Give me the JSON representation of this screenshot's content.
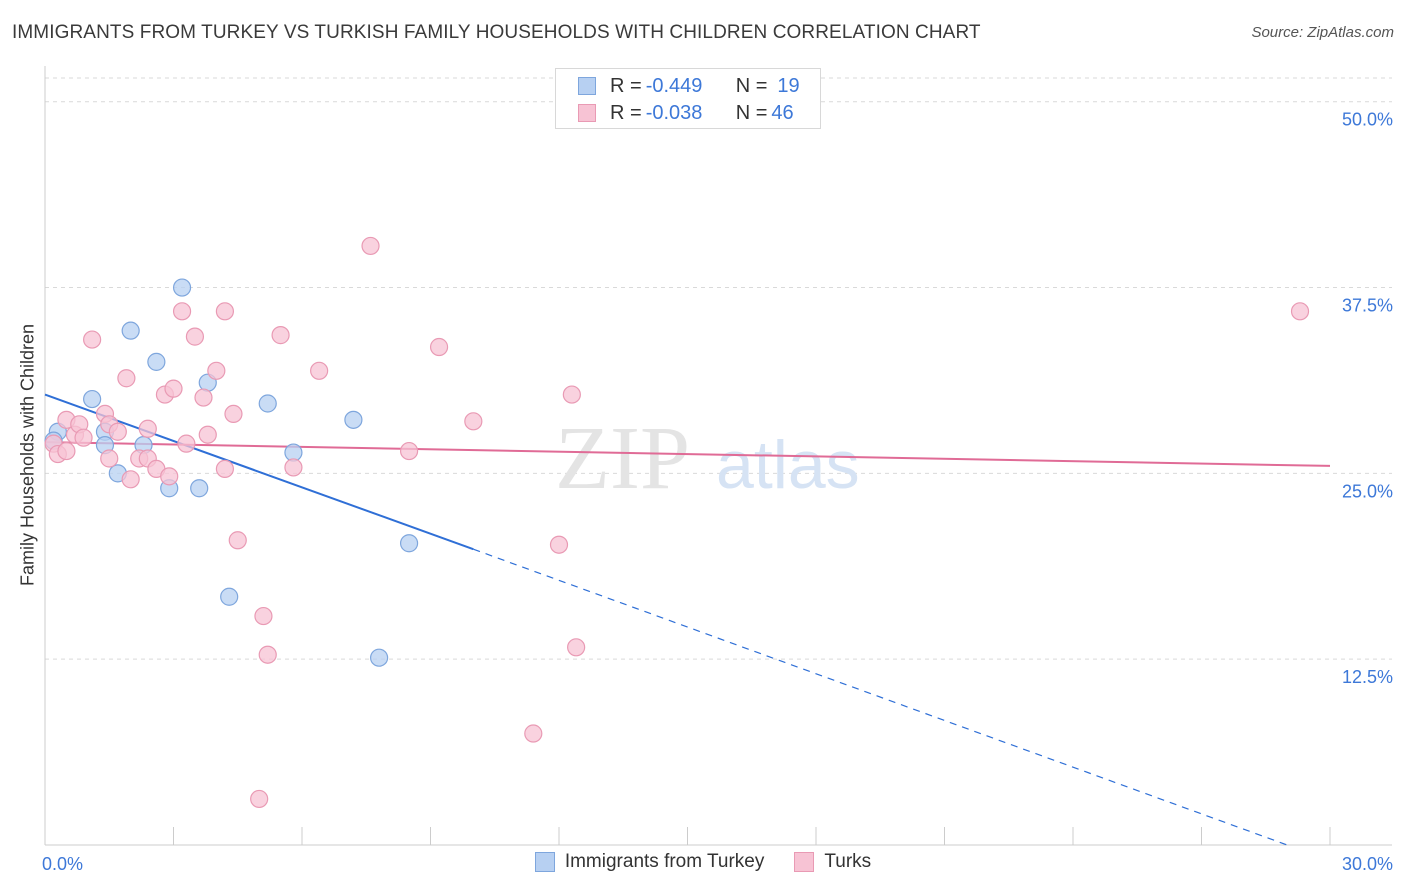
{
  "header": {
    "title": "IMMIGRANTS FROM TURKEY VS TURKISH FAMILY HOUSEHOLDS WITH CHILDREN CORRELATION CHART",
    "source": "Source: ZipAtlas.com"
  },
  "legend": {
    "rows": [
      {
        "r_label": "R = ",
        "r_value": "-0.449",
        "n_label": "N = ",
        "n_value": "19"
      },
      {
        "r_label": "R = ",
        "r_value": "-0.038",
        "n_label": "N = ",
        "n_value": "46"
      }
    ]
  },
  "watermark": {
    "zip": "ZIP",
    "atlas": "atlas"
  },
  "colors": {
    "blue_fill": "#b7d0f2",
    "blue_stroke": "#7ea6dd",
    "blue_line": "#2f6fd6",
    "pink_fill": "#f7c3d4",
    "pink_stroke": "#e99ab4",
    "pink_line": "#e06b96",
    "tick_label": "#3d78d8",
    "grid": "#d9d9d9"
  },
  "chart_data": {
    "type": "scatter",
    "title": "IMMIGRANTS FROM TURKEY VS TURKISH FAMILY HOUSEHOLDS WITH CHILDREN CORRELATION CHART",
    "xlabel": "",
    "ylabel": "Family Households with Children",
    "xlim": [
      0,
      30
    ],
    "ylim": [
      0,
      52
    ],
    "x_tick_labels": [
      "0.0%",
      "30.0%"
    ],
    "y_ticks": [
      12.5,
      25.0,
      37.5,
      50.0
    ],
    "y_tick_labels": [
      "12.5%",
      "25.0%",
      "37.5%",
      "50.0%"
    ],
    "grid": true,
    "legend_position": "bottom",
    "series": [
      {
        "name": "Immigrants from Turkey",
        "color": "#b7d0f2",
        "points": [
          [
            0.3,
            27.8
          ],
          [
            1.1,
            30.0
          ],
          [
            1.4,
            27.8
          ],
          [
            1.4,
            26.9
          ],
          [
            1.7,
            25.0
          ],
          [
            2.0,
            34.6
          ],
          [
            2.3,
            26.9
          ],
          [
            2.6,
            32.5
          ],
          [
            2.9,
            24.0
          ],
          [
            3.2,
            37.5
          ],
          [
            3.6,
            24.0
          ],
          [
            3.8,
            31.1
          ],
          [
            4.3,
            16.7
          ],
          [
            5.2,
            29.7
          ],
          [
            5.8,
            26.4
          ],
          [
            7.2,
            28.6
          ],
          [
            7.8,
            12.6
          ],
          [
            8.5,
            20.3
          ],
          [
            0.2,
            27.2
          ]
        ],
        "trend": {
          "x0": 0,
          "y0": 30.3,
          "x1": 10.0,
          "y1": 19.9,
          "dash_to_x": 29.0,
          "dash_to_y": 0.0
        }
      },
      {
        "name": "Turks",
        "color": "#f7c3d4",
        "points": [
          [
            0.2,
            27.0
          ],
          [
            0.3,
            26.3
          ],
          [
            0.5,
            28.6
          ],
          [
            0.7,
            27.6
          ],
          [
            0.8,
            28.3
          ],
          [
            1.1,
            34.0
          ],
          [
            1.4,
            29.0
          ],
          [
            1.5,
            28.3
          ],
          [
            1.5,
            26.0
          ],
          [
            1.7,
            27.8
          ],
          [
            1.9,
            31.4
          ],
          [
            2.0,
            24.6
          ],
          [
            2.2,
            26.0
          ],
          [
            2.4,
            26.0
          ],
          [
            2.4,
            28.0
          ],
          [
            2.6,
            25.3
          ],
          [
            2.8,
            30.3
          ],
          [
            2.9,
            24.8
          ],
          [
            3.0,
            30.7
          ],
          [
            3.2,
            35.9
          ],
          [
            3.3,
            27.0
          ],
          [
            3.5,
            34.2
          ],
          [
            3.7,
            30.1
          ],
          [
            3.8,
            27.6
          ],
          [
            4.0,
            31.9
          ],
          [
            4.2,
            25.3
          ],
          [
            4.2,
            35.9
          ],
          [
            4.4,
            29.0
          ],
          [
            4.5,
            20.5
          ],
          [
            5.0,
            3.1
          ],
          [
            5.1,
            15.4
          ],
          [
            5.2,
            12.8
          ],
          [
            5.5,
            34.3
          ],
          [
            5.8,
            25.4
          ],
          [
            6.4,
            31.9
          ],
          [
            7.6,
            40.3
          ],
          [
            8.5,
            26.5
          ],
          [
            9.2,
            33.5
          ],
          [
            10.0,
            28.5
          ],
          [
            11.4,
            7.5
          ],
          [
            12.0,
            20.2
          ],
          [
            12.3,
            30.3
          ],
          [
            12.4,
            13.3
          ],
          [
            29.3,
            35.9
          ],
          [
            0.5,
            26.5
          ],
          [
            0.9,
            27.4
          ]
        ],
        "trend": {
          "x0": 0,
          "y0": 27.1,
          "x1": 30.0,
          "y1": 25.5
        }
      }
    ]
  }
}
